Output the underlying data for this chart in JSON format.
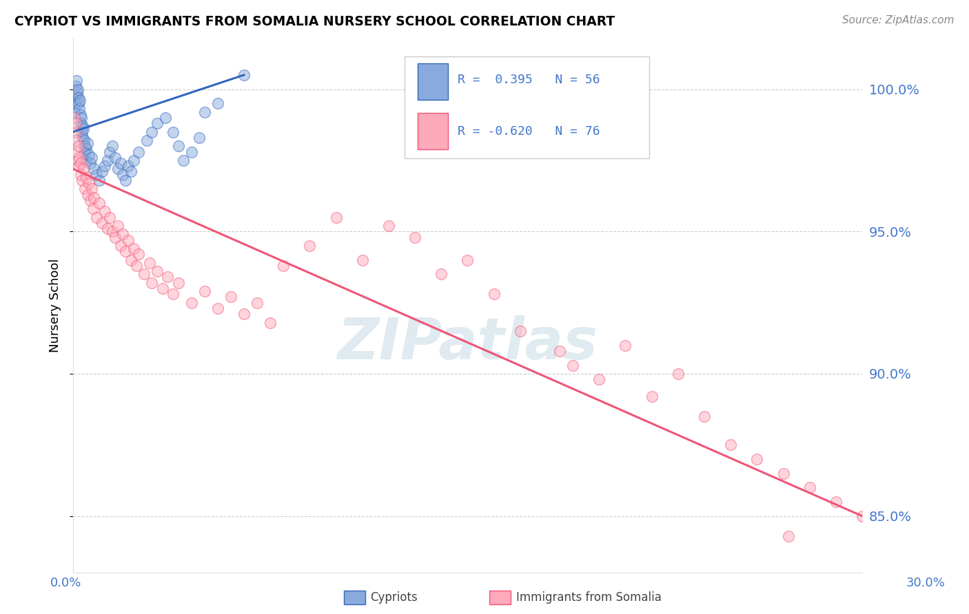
{
  "title": "CYPRIOT VS IMMIGRANTS FROM SOMALIA NURSERY SCHOOL CORRELATION CHART",
  "source": "Source: ZipAtlas.com",
  "ylabel": "Nursery School",
  "watermark": "ZIPatlas",
  "xlim": [
    0.0,
    30.0
  ],
  "ylim": [
    83.0,
    101.8
  ],
  "yticks": [
    85.0,
    90.0,
    95.0,
    100.0
  ],
  "ytick_labels": [
    "85.0%",
    "90.0%",
    "95.0%",
    "100.0%"
  ],
  "blue_R": 0.395,
  "blue_N": 56,
  "pink_R": -0.62,
  "pink_N": 76,
  "blue_color": "#88AADD",
  "pink_color": "#FFAABB",
  "blue_line_color": "#3366BB",
  "pink_line_color": "#EE5577",
  "axis_color": "#4477CC",
  "blue_points_x": [
    0.05,
    0.08,
    0.1,
    0.12,
    0.14,
    0.16,
    0.18,
    0.2,
    0.22,
    0.24,
    0.26,
    0.28,
    0.3,
    0.32,
    0.34,
    0.36,
    0.38,
    0.4,
    0.42,
    0.44,
    0.46,
    0.48,
    0.5,
    0.55,
    0.6,
    0.65,
    0.7,
    0.8,
    0.9,
    1.0,
    1.1,
    1.2,
    1.3,
    1.4,
    1.5,
    1.6,
    1.7,
    1.8,
    1.9,
    2.0,
    2.1,
    2.2,
    2.3,
    2.5,
    2.8,
    3.0,
    3.2,
    3.5,
    3.8,
    4.0,
    4.2,
    4.5,
    4.8,
    5.0,
    5.5,
    6.5
  ],
  "blue_points_y": [
    99.2,
    99.5,
    99.8,
    100.1,
    100.3,
    99.9,
    100.0,
    99.7,
    99.5,
    99.3,
    99.6,
    99.1,
    98.8,
    99.0,
    98.5,
    98.7,
    98.3,
    98.6,
    98.2,
    98.0,
    97.8,
    97.5,
    97.9,
    98.1,
    97.7,
    97.4,
    97.6,
    97.2,
    97.0,
    96.8,
    97.1,
    97.3,
    97.5,
    97.8,
    98.0,
    97.6,
    97.2,
    97.4,
    97.0,
    96.8,
    97.3,
    97.1,
    97.5,
    97.8,
    98.2,
    98.5,
    98.8,
    99.0,
    98.5,
    98.0,
    97.5,
    97.8,
    98.3,
    99.2,
    99.5,
    100.5
  ],
  "pink_points_x": [
    0.05,
    0.08,
    0.1,
    0.12,
    0.15,
    0.18,
    0.2,
    0.22,
    0.25,
    0.28,
    0.3,
    0.35,
    0.4,
    0.45,
    0.5,
    0.55,
    0.6,
    0.65,
    0.7,
    0.75,
    0.8,
    0.9,
    1.0,
    1.1,
    1.2,
    1.3,
    1.4,
    1.5,
    1.6,
    1.7,
    1.8,
    1.9,
    2.0,
    2.1,
    2.2,
    2.3,
    2.4,
    2.5,
    2.7,
    2.9,
    3.0,
    3.2,
    3.4,
    3.6,
    3.8,
    4.0,
    4.5,
    5.0,
    5.5,
    6.0,
    6.5,
    7.0,
    7.5,
    8.0,
    9.0,
    10.0,
    11.0,
    12.0,
    13.0,
    14.0,
    15.0,
    16.0,
    17.0,
    18.5,
    19.0,
    20.0,
    22.0,
    24.0,
    25.0,
    26.0,
    27.0,
    28.0,
    29.0,
    30.0,
    21.0,
    23.0
  ],
  "pink_points_y": [
    99.0,
    98.5,
    98.8,
    98.2,
    97.8,
    97.5,
    98.0,
    97.3,
    97.6,
    97.0,
    97.4,
    96.8,
    97.2,
    96.5,
    96.9,
    96.3,
    96.7,
    96.1,
    96.5,
    95.8,
    96.2,
    95.5,
    96.0,
    95.3,
    95.7,
    95.1,
    95.5,
    95.0,
    94.8,
    95.2,
    94.5,
    94.9,
    94.3,
    94.7,
    94.0,
    94.4,
    93.8,
    94.2,
    93.5,
    93.9,
    93.2,
    93.6,
    93.0,
    93.4,
    92.8,
    93.2,
    92.5,
    92.9,
    92.3,
    92.7,
    92.1,
    92.5,
    91.8,
    93.8,
    94.5,
    95.5,
    94.0,
    95.2,
    94.8,
    93.5,
    94.0,
    92.8,
    91.5,
    90.8,
    90.3,
    89.8,
    89.2,
    88.5,
    87.5,
    87.0,
    86.5,
    86.0,
    85.5,
    85.0,
    91.0,
    90.0
  ],
  "pink_isolated_x": [
    27.2
  ],
  "pink_isolated_y": [
    84.3
  ],
  "blue_trend_x": [
    0.0,
    6.5
  ],
  "blue_trend_y": [
    98.5,
    100.5
  ],
  "pink_trend_x": [
    0.0,
    30.0
  ],
  "pink_trend_y": [
    97.2,
    85.0
  ],
  "background_color": "#FFFFFF",
  "grid_color": "#CCCCCC",
  "legend_R_color": "#4477CC"
}
